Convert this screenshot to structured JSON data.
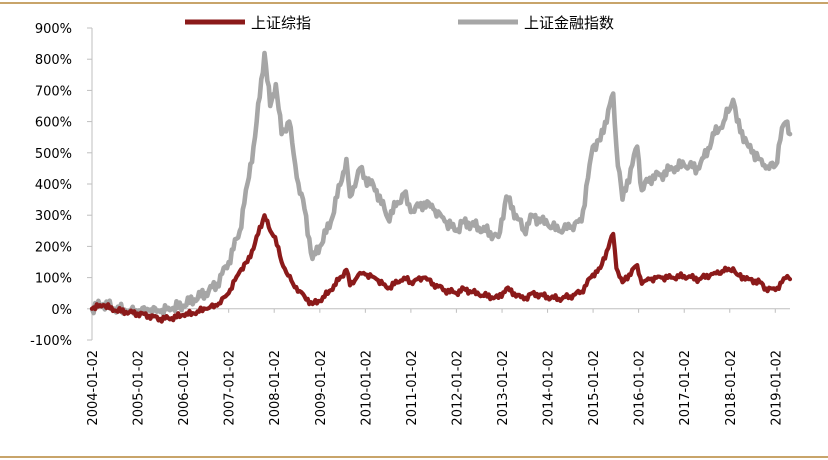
{
  "chart_data": {
    "type": "line",
    "title": "",
    "xlabel": "",
    "ylabel": "",
    "y_unit": "%",
    "ylim": [
      -100,
      900
    ],
    "y_ticks": [
      -100,
      0,
      100,
      200,
      300,
      400,
      500,
      600,
      700,
      800,
      900
    ],
    "y_tick_labels": [
      "-100%",
      "0%",
      "100%",
      "200%",
      "300%",
      "400%",
      "500%",
      "600%",
      "700%",
      "800%",
      "900%"
    ],
    "x_tick_labels": [
      "2004-01-02",
      "2005-01-02",
      "2006-01-02",
      "2007-01-02",
      "2008-01-02",
      "2009-01-02",
      "2010-01-02",
      "2011-01-02",
      "2012-01-02",
      "2013-01-02",
      "2014-01-02",
      "2015-01-02",
      "2016-01-02",
      "2017-01-02",
      "2018-01-02",
      "2019-01-02"
    ],
    "xlim": [
      "2004-01-02",
      "2019-04-30"
    ],
    "grid": false,
    "legend_position": "top",
    "series": [
      {
        "name": "上证综指",
        "color": "#8b1a1a",
        "points": [
          [
            "2004-01-02",
            0
          ],
          [
            "2004-04-01",
            12
          ],
          [
            "2004-07-01",
            -5
          ],
          [
            "2004-10-01",
            -10
          ],
          [
            "2005-01-02",
            -15
          ],
          [
            "2005-04-01",
            -22
          ],
          [
            "2005-07-01",
            -32
          ],
          [
            "2005-10-01",
            -30
          ],
          [
            "2006-01-02",
            -20
          ],
          [
            "2006-04-01",
            -15
          ],
          [
            "2006-07-01",
            0
          ],
          [
            "2006-10-01",
            10
          ],
          [
            "2007-01-02",
            50
          ],
          [
            "2007-04-01",
            120
          ],
          [
            "2007-06-01",
            150
          ],
          [
            "2007-08-01",
            210
          ],
          [
            "2007-10-16",
            300
          ],
          [
            "2007-12-01",
            250
          ],
          [
            "2008-01-10",
            230
          ],
          [
            "2008-03-01",
            150
          ],
          [
            "2008-06-01",
            80
          ],
          [
            "2008-09-01",
            40
          ],
          [
            "2008-11-04",
            15
          ],
          [
            "2009-01-02",
            25
          ],
          [
            "2009-04-01",
            60
          ],
          [
            "2009-08-03",
            125
          ],
          [
            "2009-09-01",
            75
          ],
          [
            "2009-11-20",
            115
          ],
          [
            "2010-01-02",
            110
          ],
          [
            "2010-04-01",
            95
          ],
          [
            "2010-07-01",
            65
          ],
          [
            "2010-11-08",
            100
          ],
          [
            "2011-01-02",
            85
          ],
          [
            "2011-04-18",
            100
          ],
          [
            "2011-07-01",
            80
          ],
          [
            "2011-10-01",
            60
          ],
          [
            "2012-01-02",
            50
          ],
          [
            "2012-03-01",
            65
          ],
          [
            "2012-07-01",
            45
          ],
          [
            "2012-12-04",
            35
          ],
          [
            "2013-02-06",
            65
          ],
          [
            "2013-06-27",
            30
          ],
          [
            "2013-09-01",
            50
          ],
          [
            "2014-01-02",
            38
          ],
          [
            "2014-04-01",
            32
          ],
          [
            "2014-07-01",
            40
          ],
          [
            "2014-10-01",
            55
          ],
          [
            "2014-12-31",
            110
          ],
          [
            "2015-03-01",
            130
          ],
          [
            "2015-06-12",
            240
          ],
          [
            "2015-07-08",
            130
          ],
          [
            "2015-08-26",
            85
          ],
          [
            "2015-12-22",
            140
          ],
          [
            "2016-01-28",
            80
          ],
          [
            "2016-04-01",
            95
          ],
          [
            "2016-07-01",
            100
          ],
          [
            "2016-10-01",
            100
          ],
          [
            "2017-01-02",
            105
          ],
          [
            "2017-05-01",
            95
          ],
          [
            "2017-09-01",
            115
          ],
          [
            "2017-11-14",
            120
          ],
          [
            "2018-01-29",
            130
          ],
          [
            "2018-03-01",
            110
          ],
          [
            "2018-06-01",
            95
          ],
          [
            "2018-09-01",
            85
          ],
          [
            "2018-10-19",
            65
          ],
          [
            "2019-01-04",
            60
          ],
          [
            "2019-02-25",
            85
          ],
          [
            "2019-04-08",
            105
          ],
          [
            "2019-04-30",
            95
          ]
        ]
      },
      {
        "name": "上证金融指数",
        "color": "#a6a6a6",
        "points": [
          [
            "2004-01-02",
            0
          ],
          [
            "2004-04-01",
            15
          ],
          [
            "2004-07-01",
            0
          ],
          [
            "2004-10-01",
            -8
          ],
          [
            "2005-01-02",
            -10
          ],
          [
            "2005-04-01",
            -5
          ],
          [
            "2005-07-01",
            -10
          ],
          [
            "2005-10-01",
            0
          ],
          [
            "2006-01-02",
            10
          ],
          [
            "2006-04-01",
            30
          ],
          [
            "2006-07-01",
            50
          ],
          [
            "2006-10-01",
            80
          ],
          [
            "2007-01-02",
            150
          ],
          [
            "2007-04-01",
            250
          ],
          [
            "2007-06-01",
            400
          ],
          [
            "2007-08-01",
            550
          ],
          [
            "2007-10-16",
            820
          ],
          [
            "2007-12-01",
            650
          ],
          [
            "2008-01-15",
            720
          ],
          [
            "2008-03-01",
            560
          ],
          [
            "2008-05-01",
            600
          ],
          [
            "2008-07-01",
            420
          ],
          [
            "2008-09-01",
            320
          ],
          [
            "2008-11-04",
            160
          ],
          [
            "2009-01-02",
            200
          ],
          [
            "2009-04-01",
            280
          ],
          [
            "2009-08-03",
            480
          ],
          [
            "2009-09-01",
            360
          ],
          [
            "2009-11-20",
            450
          ],
          [
            "2010-01-02",
            420
          ],
          [
            "2010-04-01",
            380
          ],
          [
            "2010-07-01",
            290
          ],
          [
            "2010-11-08",
            370
          ],
          [
            "2011-01-02",
            310
          ],
          [
            "2011-04-18",
            340
          ],
          [
            "2011-07-01",
            320
          ],
          [
            "2011-10-01",
            280
          ],
          [
            "2012-01-02",
            250
          ],
          [
            "2012-03-01",
            280
          ],
          [
            "2012-07-01",
            260
          ],
          [
            "2012-12-04",
            230
          ],
          [
            "2013-02-06",
            360
          ],
          [
            "2013-06-27",
            250
          ],
          [
            "2013-09-01",
            300
          ],
          [
            "2014-01-02",
            270
          ],
          [
            "2014-04-01",
            250
          ],
          [
            "2014-07-01",
            260
          ],
          [
            "2014-10-01",
            280
          ],
          [
            "2014-12-31",
            520
          ],
          [
            "2015-03-01",
            540
          ],
          [
            "2015-06-12",
            690
          ],
          [
            "2015-07-08",
            520
          ],
          [
            "2015-08-26",
            350
          ],
          [
            "2015-12-22",
            520
          ],
          [
            "2016-01-28",
            380
          ],
          [
            "2016-04-01",
            420
          ],
          [
            "2016-07-01",
            430
          ],
          [
            "2016-10-01",
            450
          ],
          [
            "2017-01-02",
            460
          ],
          [
            "2017-05-01",
            450
          ],
          [
            "2017-09-01",
            560
          ],
          [
            "2017-11-14",
            600
          ],
          [
            "2018-01-29",
            670
          ],
          [
            "2018-03-01",
            600
          ],
          [
            "2018-06-01",
            520
          ],
          [
            "2018-09-01",
            480
          ],
          [
            "2018-10-19",
            450
          ],
          [
            "2019-01-04",
            460
          ],
          [
            "2019-02-25",
            580
          ],
          [
            "2019-04-08",
            600
          ],
          [
            "2019-04-30",
            560
          ]
        ]
      }
    ]
  }
}
